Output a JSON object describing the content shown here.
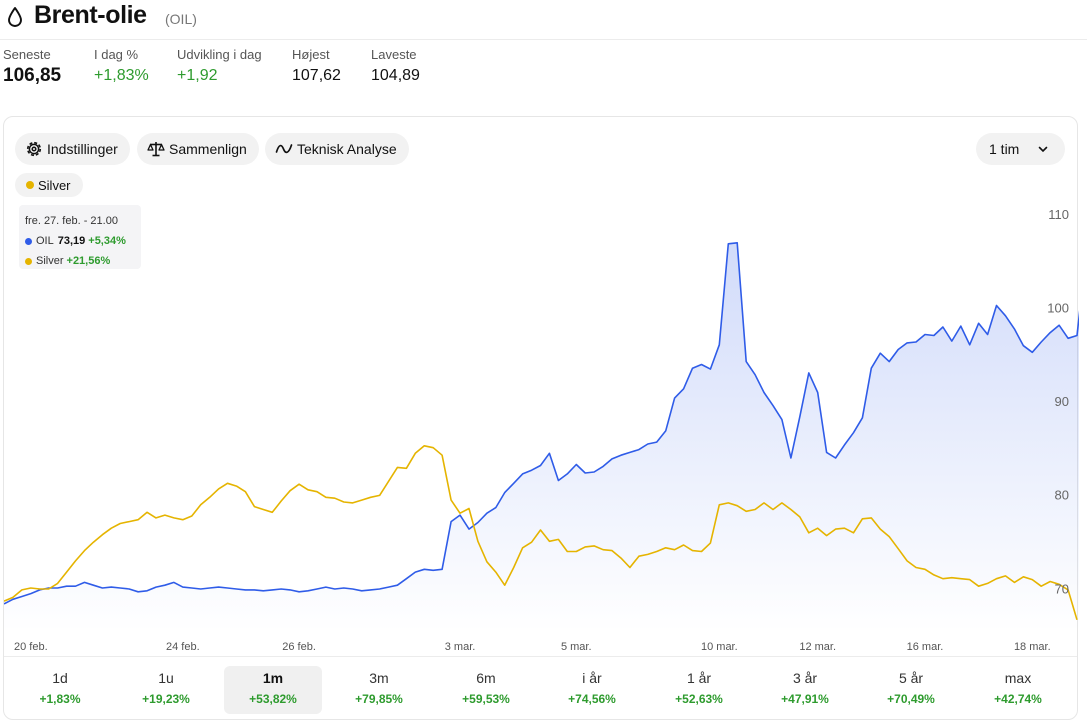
{
  "header": {
    "title": "Brent-olie",
    "ticker": "(OIL)"
  },
  "stats": [
    {
      "label": "Seneste",
      "value": "106,85",
      "positive": false
    },
    {
      "label": "I dag %",
      "value": "+1,83%",
      "positive": true
    },
    {
      "label": "Udvikling i dag",
      "value": "+1,92",
      "positive": true
    },
    {
      "label": "Højest",
      "value": "107,62",
      "positive": false
    },
    {
      "label": "Laveste",
      "value": "104,89",
      "positive": false
    }
  ],
  "toolbar": {
    "settings_label": "Indstillinger",
    "compare_label": "Sammenlign",
    "technical_label": "Teknisk Analyse",
    "interval_value": "1 tim"
  },
  "compare_tag": "Silver",
  "tooltip": {
    "date": "fre. 27. feb. - 21.00",
    "oil_name": "OIL",
    "oil_value": "73,19",
    "oil_change": "+5,34%",
    "silver_name": "Silver",
    "silver_change": "+21,56%"
  },
  "colors": {
    "oil": "#2f5ce8",
    "silver": "#e5b400",
    "positive": "#2e9b2e"
  },
  "timeframes": [
    {
      "name": "1d",
      "pct": "+1,83%"
    },
    {
      "name": "1u",
      "pct": "+19,23%"
    },
    {
      "name": "1m",
      "pct": "+53,82%",
      "active": true
    },
    {
      "name": "3m",
      "pct": "+79,85%"
    },
    {
      "name": "6m",
      "pct": "+59,53%"
    },
    {
      "name": "i år",
      "pct": "+74,56%"
    },
    {
      "name": "1 år",
      "pct": "+52,63%"
    },
    {
      "name": "3 år",
      "pct": "+47,91%"
    },
    {
      "name": "5 år",
      "pct": "+70,49%"
    },
    {
      "name": "max",
      "pct": "+42,74%"
    }
  ],
  "chart_data": {
    "type": "line",
    "y_axis": {
      "ticks": [
        70,
        80,
        90,
        100,
        110
      ],
      "range": [
        66.5,
        113
      ],
      "position": "right"
    },
    "x_axis": {
      "labels": [
        "20 feb.",
        "24 feb.",
        "26 feb.",
        "3 mar.",
        "5 mar.",
        "10 mar.",
        "12 mar.",
        "16 mar.",
        "18 mar."
      ],
      "label_index": [
        3,
        20,
        33,
        51,
        64,
        80,
        91,
        103,
        115
      ],
      "count": 121
    },
    "grid": false,
    "legend": "top-left",
    "series": [
      {
        "name": "OIL",
        "color": "#2f5ce8",
        "area": true,
        "values": [
          69.5,
          70,
          70.3,
          70.6,
          71,
          71.2,
          71.2,
          71.4,
          71.4,
          71.8,
          71.5,
          71.2,
          71.3,
          71.2,
          71.1,
          70.8,
          70.9,
          71.3,
          71.5,
          71.8,
          71.3,
          71.2,
          71.1,
          71.2,
          71.3,
          71.2,
          71.1,
          71,
          71,
          70.9,
          71,
          71.1,
          71,
          70.8,
          70.9,
          71.1,
          71.3,
          71.1,
          71.2,
          71.1,
          70.9,
          71,
          71.1,
          71.3,
          71.5,
          72.2,
          72.9,
          73.2,
          73.1,
          73.2,
          78.3,
          79,
          77.5,
          78.2,
          79.2,
          79.8,
          81.4,
          82.4,
          83.4,
          83.8,
          84.3,
          85.6,
          82.7,
          83.4,
          84.4,
          83.5,
          83.6,
          84.2,
          85,
          85.4,
          85.7,
          86,
          86.6,
          86.8,
          88,
          91.5,
          92.5,
          94.7,
          95.1,
          94.6,
          97.2,
          108,
          108.1,
          95.4,
          94,
          92.1,
          90.7,
          89.2,
          85.1,
          89.5,
          94.2,
          92.1,
          85.7,
          85.1,
          86.5,
          87.8,
          89.4,
          94.7,
          96.3,
          95.4,
          96.7,
          97.4,
          97.5,
          98.3,
          98.2,
          99.1,
          97.6,
          99.2,
          97.2,
          99.5,
          98.3,
          101.4,
          100.3,
          98.9,
          97.1,
          96.4,
          97.5,
          98.5,
          99.3,
          97.9,
          98.2,
          106.8
        ]
      },
      {
        "name": "Silver",
        "color": "#e5b400",
        "area": false,
        "values": [
          69.8,
          70.2,
          71,
          71.2,
          71.1,
          71.1,
          71.7,
          72.9,
          74.1,
          75.2,
          76.1,
          76.9,
          77.6,
          78.1,
          78.3,
          78.5,
          79.3,
          78.7,
          79,
          78.7,
          78.5,
          78.9,
          80.1,
          80.9,
          81.8,
          82.4,
          82.1,
          81.5,
          79.9,
          79.6,
          79.3,
          80.5,
          81.6,
          82.3,
          81.7,
          81.5,
          80.9,
          80.8,
          80.4,
          80.3,
          80.6,
          80.9,
          81.1,
          82.6,
          84.1,
          84,
          85.6,
          86.4,
          86.2,
          85.4,
          80.6,
          79.2,
          79.7,
          76.2,
          74,
          72.9,
          71.5,
          73.4,
          75.5,
          76.1,
          77.4,
          76.2,
          76.4,
          75.1,
          75.1,
          75.6,
          75.7,
          75.3,
          75.2,
          74.4,
          73.4,
          74.6,
          74.8,
          75.1,
          75.5,
          75.3,
          75.8,
          75.2,
          75.1,
          76,
          80.1,
          80.3,
          80,
          79.4,
          79.6,
          80.3,
          79.6,
          80.3,
          79.6,
          78.8,
          77.1,
          77.6,
          76.8,
          77.5,
          77.6,
          77.1,
          78.6,
          78.7,
          77.5,
          76.7,
          75.4,
          74.1,
          73.4,
          73.2,
          72.6,
          72.2,
          72.3,
          72.2,
          72.1,
          71.4,
          71.7,
          72.2,
          72.5,
          71.8,
          72.4,
          72.1,
          71.4,
          71.9,
          71.6,
          71,
          67.8
        ]
      }
    ]
  }
}
